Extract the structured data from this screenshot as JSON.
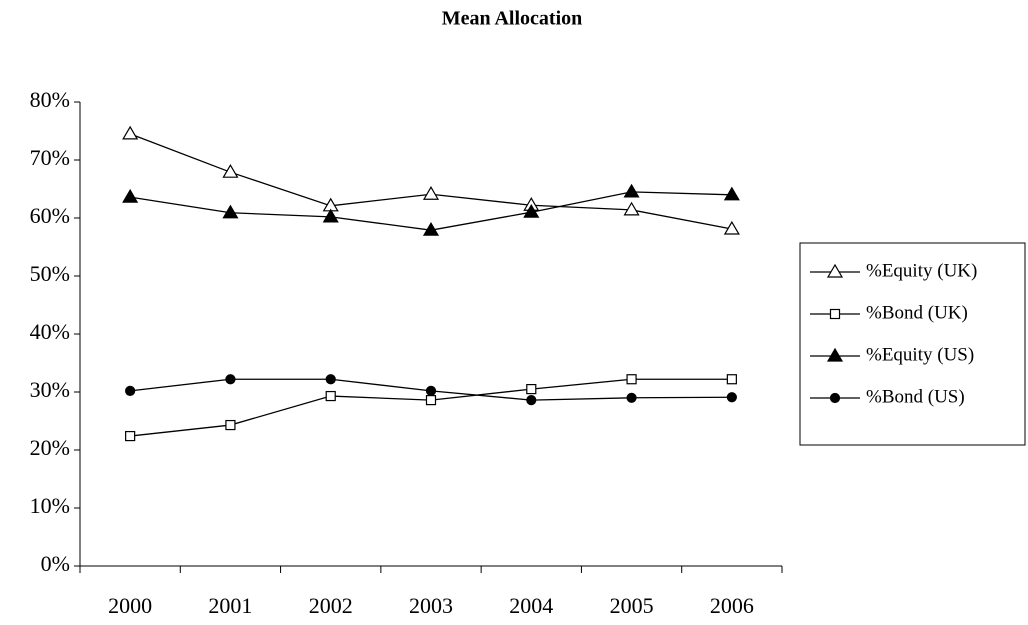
{
  "chart_data": {
    "type": "line",
    "title": "Mean Allocation",
    "categories": [
      "2000",
      "2001",
      "2002",
      "2003",
      "2004",
      "2005",
      "2006"
    ],
    "series": [
      {
        "name": "%Equity (UK)",
        "color": "#000000",
        "marker": "triangle",
        "marker_fill": "#ffffff",
        "values": [
          74.5,
          67.9,
          62.1,
          64.1,
          62.2,
          61.4,
          58.1
        ]
      },
      {
        "name": "%Bond (UK)",
        "color": "#000000",
        "marker": "square",
        "marker_fill": "#ffffff",
        "values": [
          22.4,
          24.3,
          29.3,
          28.6,
          30.5,
          32.2,
          32.2
        ]
      },
      {
        "name": "%Equity (US)",
        "color": "#000000",
        "marker": "triangle",
        "marker_fill": "#000000",
        "values": [
          63.6,
          60.9,
          60.2,
          57.9,
          61.0,
          64.5,
          64.0
        ]
      },
      {
        "name": "%Bond (US)",
        "color": "#000000",
        "marker": "circle",
        "marker_fill": "#000000",
        "values": [
          30.2,
          32.2,
          32.2,
          30.2,
          28.6,
          29.0,
          29.1
        ]
      }
    ],
    "ylim": [
      0,
      80
    ],
    "yticks": [
      {
        "value": 0,
        "label": "0%"
      },
      {
        "value": 10,
        "label": "10%"
      },
      {
        "value": 20,
        "label": "20%"
      },
      {
        "value": 30,
        "label": "30%"
      },
      {
        "value": 40,
        "label": "40%"
      },
      {
        "value": 50,
        "label": "50%"
      },
      {
        "value": 60,
        "label": "60%"
      },
      {
        "value": 70,
        "label": "70%"
      },
      {
        "value": 80,
        "label": "80%"
      }
    ],
    "grid": false,
    "legend": "right"
  }
}
